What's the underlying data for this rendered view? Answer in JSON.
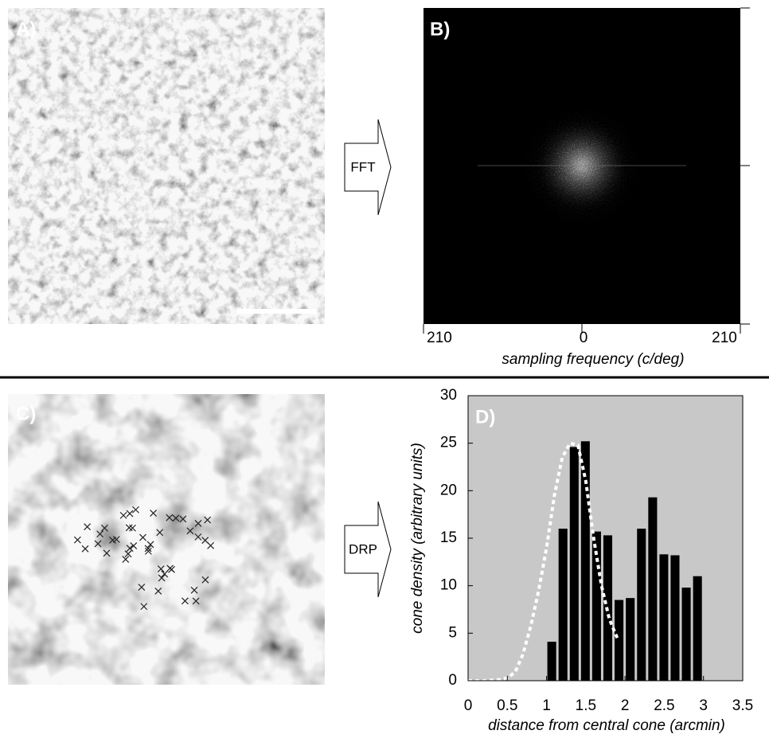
{
  "panels": {
    "a": {
      "label": "A)"
    },
    "b": {
      "label": "B)"
    },
    "c": {
      "label": "C)"
    },
    "d": {
      "label": "D)"
    }
  },
  "arrows": [
    "FFT",
    "DRP"
  ],
  "chart_data": [
    {
      "type": "spectrum",
      "xlim": [
        -210,
        210
      ],
      "xticks": [
        {
          "value": -210,
          "label": "210"
        },
        0,
        210
      ],
      "x_label": "sampling frequency (c/deg)"
    },
    {
      "type": "histogram",
      "x_label": "distance from central cone (arcmin)",
      "y_label": "cone density (arbitrary units)",
      "bins": [
        1,
        1.143,
        1.286,
        1.429,
        1.571,
        1.714,
        1.857,
        2,
        2.143,
        2.286,
        2.429,
        2.571,
        2.714,
        2.857,
        3
      ],
      "values": [
        4.1,
        16,
        24.6,
        25.2,
        15.7,
        15.3,
        8.5,
        8.7,
        16,
        19.3,
        13.3,
        13.2,
        9.8,
        11
      ],
      "color": "#000000",
      "background": "#c8c8c8",
      "fit": {
        "x": [
          0,
          0.2,
          0.4,
          0.5,
          0.6,
          0.7,
          0.8,
          0.9,
          1.0,
          1.1,
          1.2,
          1.3,
          1.4,
          1.5,
          1.6,
          1.7,
          1.8,
          1.9
        ],
        "values": [
          0,
          0,
          0.1,
          0.3,
          0.9,
          2.8,
          5.8,
          9.5,
          14,
          19.5,
          23.5,
          25,
          24.8,
          21,
          15,
          10,
          6.5,
          4.5
        ],
        "color": "#ffffff",
        "style": "dashed"
      },
      "xlim": [
        0,
        3.5
      ],
      "xticks": [
        0,
        0.5,
        1,
        1.5,
        2,
        2.5,
        3,
        3.5
      ],
      "ylim": [
        0,
        30
      ],
      "yticks": [
        0,
        5,
        10,
        15,
        20,
        25,
        30
      ]
    }
  ]
}
